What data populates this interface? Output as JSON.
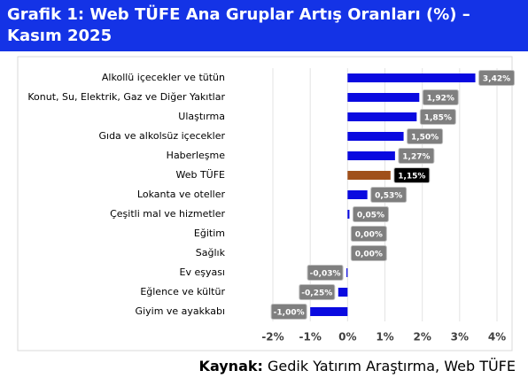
{
  "chart_data": {
    "type": "barh",
    "title_lines": [
      "Grafik 1: Web TÜFE Ana Gruplar Artış Oranları (%) –",
      "Kasım  2025"
    ],
    "categories": [
      "Alkollü içecekler ve tütün",
      "Konut, Su, Elektrik, Gaz ve Diğer Yakıtlar",
      "Ulaştırma",
      "Gıda ve alkolsüz içecekler",
      "Haberleşme",
      "Web TÜFE",
      "Lokanta ve oteller",
      "Çeşitli mal ve hizmetler",
      "Eğitim",
      "Sağlık",
      "Ev eşyası",
      "Eğlence ve kültür",
      "Giyim ve ayakkabı"
    ],
    "values": [
      3.42,
      1.92,
      1.85,
      1.5,
      1.27,
      1.15,
      0.53,
      0.05,
      0.0,
      0.0,
      -0.03,
      -0.25,
      -1.0
    ],
    "value_labels": [
      "3,42%",
      "1,92%",
      "1,85%",
      "1,50%",
      "1,27%",
      "1,15%",
      "0,53%",
      "0,05%",
      "0,00%",
      "0,00%",
      "-0,03%",
      "-0,25%",
      "-1,00%"
    ],
    "colors": [
      "#0a0ae0",
      "#0a0ae0",
      "#0a0ae0",
      "#0a0ae0",
      "#0a0ae0",
      "#a0501a",
      "#0a0ae0",
      "#0a0ae0",
      "#0a0ae0",
      "#0a0ae0",
      "#0a0ae0",
      "#0a0ae0",
      "#0a0ae0"
    ],
    "label_fills": [
      "#7f7f7f",
      "#7f7f7f",
      "#7f7f7f",
      "#7f7f7f",
      "#7f7f7f",
      "#000000",
      "#7f7f7f",
      "#7f7f7f",
      "#7f7f7f",
      "#7f7f7f",
      "#7f7f7f",
      "#7f7f7f",
      "#7f7f7f"
    ],
    "xlim": [
      -2,
      4
    ],
    "xticks": [
      {
        "value": -2,
        "label": "-2%"
      },
      {
        "value": -1,
        "label": "-1%"
      },
      {
        "value": 0,
        "label": "0%"
      },
      {
        "value": 1,
        "label": "1%"
      },
      {
        "value": 2,
        "label": "2%"
      },
      {
        "value": 3,
        "label": "3%"
      },
      {
        "value": 4,
        "label": "4%"
      }
    ],
    "grid": true,
    "source_label": "Kaynak:",
    "source_text": "Gedik Yatırım Araştırma, Web TÜFE"
  }
}
